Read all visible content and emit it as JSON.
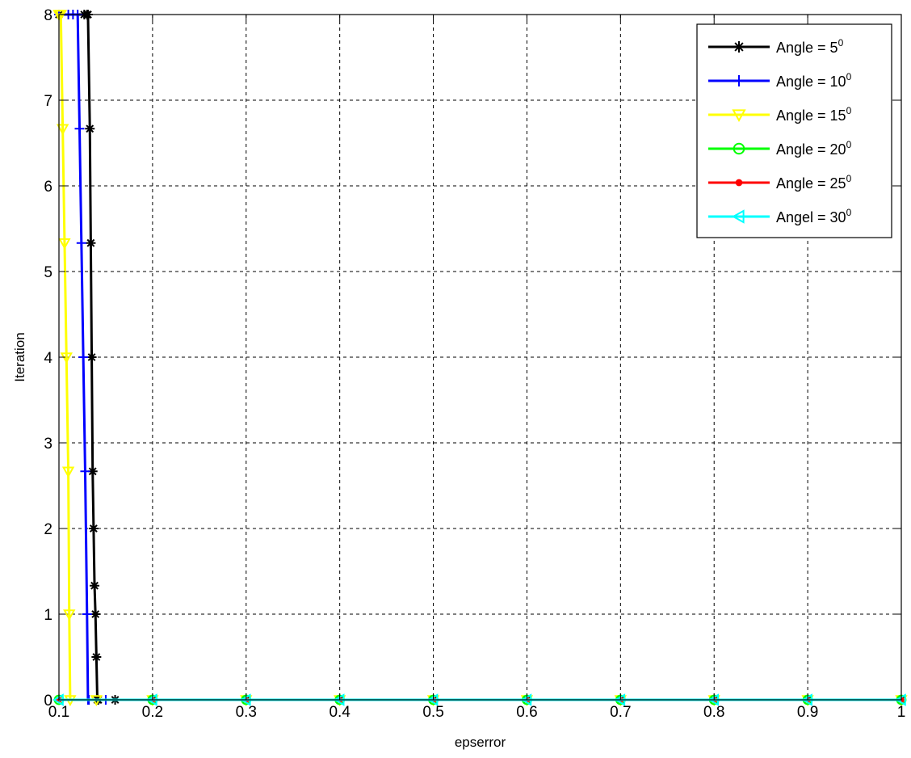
{
  "chart_data": {
    "type": "line",
    "title": "",
    "xlabel": "epserror",
    "ylabel": "Iteration",
    "xlim": [
      0.1,
      1.0
    ],
    "ylim": [
      0,
      8
    ],
    "grid": true,
    "legend_position": "top-right",
    "x_ticks": [
      "0.1",
      "0.2",
      "0.3",
      "0.4",
      "0.5",
      "0.6",
      "0.7",
      "0.8",
      "0.9",
      "1"
    ],
    "y_ticks": [
      "0",
      "1",
      "2",
      "3",
      "4",
      "5",
      "6",
      "7",
      "8"
    ],
    "degree_sup": "0",
    "series": [
      {
        "name": "Angle = 5",
        "color": "#000000",
        "marker": "star",
        "x": [
          0.1,
          0.127,
          0.13,
          0.131,
          0.133,
          0.134,
          0.135,
          0.136,
          0.137,
          0.138,
          0.139,
          0.14,
          0.141,
          0.142,
          0.16,
          0.2,
          0.3,
          0.4,
          0.5,
          0.6,
          0.7,
          0.8,
          0.9,
          1.0
        ],
        "y": [
          8,
          8,
          8,
          8,
          6.667,
          5.333,
          4.0,
          2.667,
          2.0,
          1.333,
          1.0,
          0.5,
          0,
          0,
          0,
          0,
          0,
          0,
          0,
          0,
          0,
          0,
          0,
          0
        ]
      },
      {
        "name": "Angle = 10",
        "color": "#0000ff",
        "marker": "plus",
        "x": [
          0.1,
          0.11,
          0.115,
          0.12,
          0.122,
          0.124,
          0.126,
          0.128,
          0.13,
          0.131,
          0.132,
          0.15,
          0.2,
          0.3,
          0.4,
          0.5,
          0.6,
          0.7,
          0.8,
          0.9,
          1.0
        ],
        "y": [
          8,
          8,
          8,
          8,
          6.667,
          5.333,
          4.0,
          2.667,
          1.0,
          0,
          0,
          0,
          0,
          0,
          0,
          0,
          0,
          0,
          0,
          0,
          0
        ]
      },
      {
        "name": "Angle = 15",
        "color": "#ffff00",
        "marker": "triangle-down",
        "x": [
          0.1,
          0.102,
          0.104,
          0.106,
          0.108,
          0.11,
          0.111,
          0.112,
          0.14,
          0.2,
          0.3,
          0.4,
          0.5,
          0.6,
          0.7,
          0.8,
          0.9,
          1.0
        ],
        "y": [
          8,
          8,
          6.667,
          5.333,
          4.0,
          2.667,
          1.0,
          0,
          0,
          0,
          0,
          0,
          0,
          0,
          0,
          0,
          0,
          0
        ]
      },
      {
        "name": "Angle = 20",
        "color": "#00ff00",
        "marker": "circle",
        "x": [
          0.1,
          0.2,
          0.3,
          0.4,
          0.5,
          0.6,
          0.7,
          0.8,
          0.9,
          1.0
        ],
        "y": [
          0,
          0,
          0,
          0,
          0,
          0,
          0,
          0,
          0,
          0
        ]
      },
      {
        "name": "Angle = 25",
        "color": "#ff0000",
        "marker": "dot",
        "x": [
          0.1,
          0.2,
          0.3,
          0.4,
          0.5,
          0.6,
          0.7,
          0.8,
          0.9,
          1.0
        ],
        "y": [
          0,
          0,
          0,
          0,
          0,
          0,
          0,
          0,
          0,
          0
        ]
      },
      {
        "name": "Angel = 30",
        "color": "#00ffff",
        "marker": "triangle-left",
        "x": [
          0.1,
          0.2,
          0.3,
          0.4,
          0.5,
          0.6,
          0.7,
          0.8,
          0.9,
          1.0
        ],
        "y": [
          0,
          0,
          0,
          0,
          0,
          0,
          0,
          0,
          0,
          0
        ]
      }
    ]
  }
}
